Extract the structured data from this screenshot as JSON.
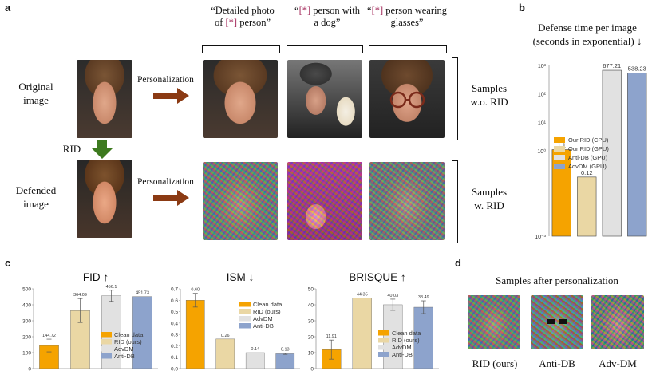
{
  "panel_a": {
    "letter": "a",
    "row_labels": {
      "original_line1": "Original",
      "original_line2": "image",
      "rid": "RID",
      "defended_line1": "Defended",
      "defended_line2": "image"
    },
    "personalization_label": "Personalization",
    "prompts": [
      {
        "line1_pre": "“Detailed photo",
        "line1_star": "",
        "line1_post": "",
        "line2_pre": "of ",
        "line2_star": "[*]",
        "line2_post": " person”"
      },
      {
        "line1_pre": "“",
        "line1_star": "[*]",
        "line1_post": " person with",
        "line2_pre": "a dog”",
        "line2_star": "",
        "line2_post": ""
      },
      {
        "line1_pre": "“",
        "line1_star": "[*]",
        "line1_post": " person wearing",
        "line2_pre": "glasses”",
        "line2_star": "",
        "line2_post": ""
      }
    ],
    "samples_wo": {
      "line1": "Samples",
      "line2": "w.o. RID"
    },
    "samples_w": {
      "line1": "Samples",
      "line2": "w. RID"
    }
  },
  "panel_b": {
    "letter": "b",
    "title_line1": "Defense time per image",
    "title_line2": "(seconds in exponential) ↓"
  },
  "panel_c": {
    "letter": "c"
  },
  "panel_d": {
    "letter": "d",
    "title": "Samples after personalization",
    "labels": [
      "RID (ours)",
      "Anti-DB",
      "Adv-DM"
    ]
  },
  "colors": {
    "orange": "#f5a300",
    "tan": "#ead7a4",
    "gray": "#e1e1e1",
    "blue": "#8da3cc",
    "arrow_brown": "#8b3a13",
    "arrow_green": "#3d7a1f",
    "star_purple": "#a3295a"
  },
  "chart_data": [
    {
      "type": "bar",
      "title": "",
      "yscale": "log",
      "ylim": [
        0.001,
        1000
      ],
      "ytick_labels": [
        "10³",
        "10²",
        "10¹",
        "10⁰",
        "10⁻³"
      ],
      "ytick_values": [
        1000,
        100,
        10,
        1,
        0.001
      ],
      "categories": [
        "Our RID (CPU)",
        "Our RID (GPU)",
        "Anti-DB (GPU)",
        "AdvDM (GPU)"
      ],
      "values": [
        1.1,
        0.12,
        677.21,
        538.23
      ],
      "value_labels": [
        "1.1",
        "0.12",
        "677.21",
        "538.23"
      ],
      "legend": [
        "Our RID (CPU)",
        "Our RID (GPU)",
        "Anti-DB (GPU)",
        "AdvDM (GPU)"
      ],
      "legend_position": "center-left"
    },
    {
      "type": "bar",
      "title": "FID ↑",
      "ylim": [
        0,
        500
      ],
      "ytick_labels": [
        "0",
        "100",
        "200",
        "300",
        "400",
        "500"
      ],
      "ytick_values": [
        0,
        100,
        200,
        300,
        400,
        500
      ],
      "categories": [
        "Clean data",
        "RID (ours)",
        "AdvDM",
        "Anti-DB"
      ],
      "values": [
        144.72,
        364.09,
        456.1,
        451.73
      ],
      "value_labels": [
        "144.72",
        "364.09",
        "456.1",
        "451.73"
      ],
      "errors": [
        40,
        75,
        35,
        0
      ],
      "legend": [
        "Clean data",
        "RID (ours)",
        "AdvDM",
        "Anti-DB"
      ],
      "legend_position": "lower-right"
    },
    {
      "type": "bar",
      "title": "ISM ↓",
      "ylim": [
        0,
        0.7
      ],
      "ytick_labels": [
        "0.0",
        "0.1",
        "0.2",
        "0.3",
        "0.4",
        "0.5",
        "0.6",
        "0.7"
      ],
      "ytick_values": [
        0,
        0.1,
        0.2,
        0.3,
        0.4,
        0.5,
        0.6,
        0.7
      ],
      "categories": [
        "Clean data",
        "RID (ours)",
        "AdvDM",
        "Anti-DB"
      ],
      "values": [
        0.6,
        0.26,
        0.14,
        0.13
      ],
      "value_labels": [
        "0.60",
        "0.26",
        "0.14",
        "0.13"
      ],
      "errors": [
        0.06,
        0,
        0,
        0.005
      ],
      "legend": [
        "Clean data",
        "RID (ours)",
        "AdvDM",
        "Anti-DB"
      ],
      "legend_position": "right"
    },
    {
      "type": "bar",
      "title": "BRISQUE ↑",
      "ylim": [
        0,
        50
      ],
      "ytick_labels": [
        "0",
        "10",
        "20",
        "30",
        "40",
        "50"
      ],
      "ytick_values": [
        0,
        10,
        20,
        30,
        40,
        50
      ],
      "categories": [
        "Clean data",
        "RID (ours)",
        "AdvDM",
        "Anti-DB"
      ],
      "values": [
        11.91,
        44.35,
        40.03,
        38.49
      ],
      "value_labels": [
        "11.91",
        "44.35",
        "40.03",
        "38.49"
      ],
      "errors": [
        6,
        0,
        3.5,
        4
      ],
      "legend": [
        "Clean data",
        "RID (ours)",
        "AdvDM",
        "Anti-DB"
      ],
      "legend_position": "lower-right"
    }
  ]
}
